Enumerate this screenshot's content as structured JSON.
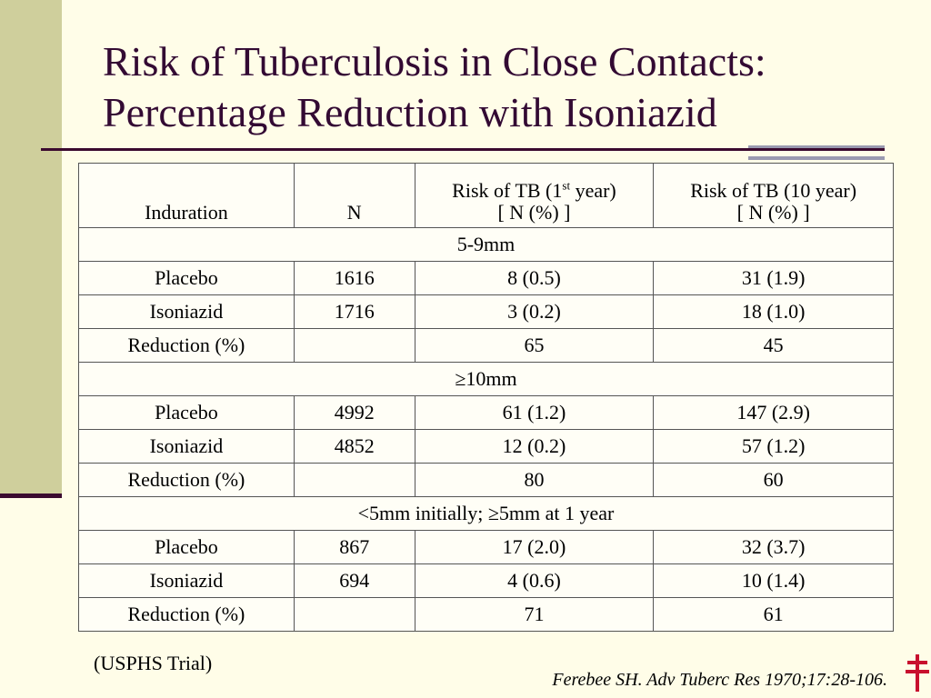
{
  "title": {
    "line1": "Risk of Tuberculosis in Close Contacts:",
    "line2": "Percentage Reduction with Isoniazid"
  },
  "table": {
    "headers": {
      "induration": "Induration",
      "n": "N",
      "risk1_pre": "Risk of TB (1",
      "risk1_sup": "st",
      "risk1_post": " year)",
      "risk1_sub": "[ N (%) ]",
      "risk10": "Risk of TB (10 year)",
      "risk10_sub": "[ N (%) ]"
    },
    "groups": [
      {
        "label": "5-9mm",
        "rows": [
          {
            "label": "Placebo",
            "n": "1616",
            "risk1": "8 (0.5)",
            "risk10": "31 (1.9)"
          },
          {
            "label": "Isoniazid",
            "n": "1716",
            "risk1": "3 (0.2)",
            "risk10": "18 (1.0)"
          },
          {
            "label": "Reduction (%)",
            "n": "",
            "risk1": "65",
            "risk10": "45"
          }
        ]
      },
      {
        "label": "≥10mm",
        "rows": [
          {
            "label": "Placebo",
            "n": "4992",
            "risk1": "61 (1.2)",
            "risk10": "147 (2.9)"
          },
          {
            "label": "Isoniazid",
            "n": "4852",
            "risk1": "12 (0.2)",
            "risk10": "57 (1.2)"
          },
          {
            "label": "Reduction (%)",
            "n": "",
            "risk1": "80",
            "risk10": "60"
          }
        ]
      },
      {
        "label": "<5mm initially; ≥5mm at 1 year",
        "rows": [
          {
            "label": "Placebo",
            "n": "867",
            "risk1": "17 (2.0)",
            "risk10": "32 (3.7)"
          },
          {
            "label": "Isoniazid",
            "n": "694",
            "risk1": "4 (0.6)",
            "risk10": "10 (1.4)"
          },
          {
            "label": "Reduction (%)",
            "n": "",
            "risk1": "71",
            "risk10": "61"
          }
        ]
      }
    ]
  },
  "note": "(USPHS Trial)",
  "citation": "Ferebee SH. Adv Tuberc Res 1970;17:28-106.",
  "icons": {
    "logo": "double-barred-cross-icon"
  },
  "colors": {
    "background": "#fffde8",
    "title": "#330a33",
    "accent_bar": "#cfcf9c",
    "rule": "#3b0a2f",
    "cross": "#c8102e"
  }
}
